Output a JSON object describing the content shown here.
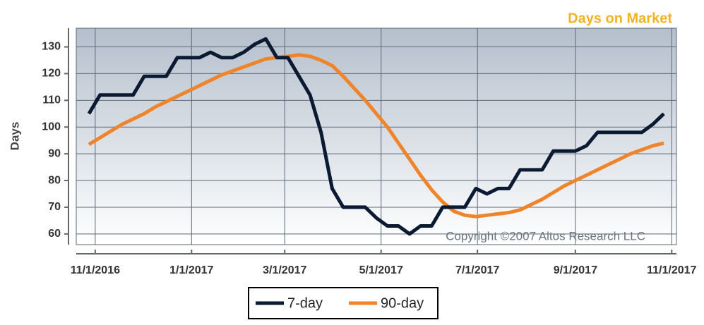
{
  "chart_data": {
    "type": "line",
    "title": "Days on Market",
    "y_label": "Days",
    "annotation": "Copyright ©2007 Altos Research LLC",
    "x": [
      "10/28/2016",
      "11/4/2016",
      "11/11/2016",
      "11/18/2016",
      "11/25/2016",
      "12/2/2016",
      "12/9/2016",
      "12/16/2016",
      "12/23/2016",
      "12/30/2016",
      "1/6/2017",
      "1/13/2017",
      "1/20/2017",
      "1/27/2017",
      "2/3/2017",
      "2/10/2017",
      "2/17/2017",
      "2/24/2017",
      "3/3/2017",
      "3/10/2017",
      "3/17/2017",
      "3/24/2017",
      "3/31/2017",
      "4/7/2017",
      "4/14/2017",
      "4/21/2017",
      "4/28/2017",
      "5/5/2017",
      "5/12/2017",
      "5/19/2017",
      "5/26/2017",
      "6/2/2017",
      "6/9/2017",
      "6/16/2017",
      "6/23/2017",
      "6/30/2017",
      "7/7/2017",
      "7/14/2017",
      "7/21/2017",
      "7/28/2017",
      "8/4/2017",
      "8/11/2017",
      "8/18/2017",
      "8/25/2017",
      "9/1/2017",
      "9/8/2017",
      "9/15/2017",
      "9/22/2017",
      "9/29/2017",
      "10/6/2017",
      "10/13/2017",
      "10/20/2017",
      "10/27/2017"
    ],
    "series": [
      {
        "name": "7-day",
        "color": "#0b1a33",
        "values": [
          105,
          112,
          112,
          112,
          112,
          119,
          119,
          119,
          126,
          126,
          126,
          128,
          126,
          126,
          128,
          131,
          133,
          126,
          126,
          119,
          112,
          98,
          77,
          70,
          70,
          70,
          66,
          63,
          63,
          60,
          63,
          63,
          70,
          70,
          70,
          77,
          75,
          77,
          77,
          84,
          84,
          84,
          91,
          91,
          91,
          93,
          98,
          98,
          98,
          98,
          98,
          101,
          105
        ]
      },
      {
        "name": "90-day",
        "color": "#f0842a",
        "values": [
          93.5,
          96,
          98.5,
          101,
          103,
          105,
          107.5,
          109.5,
          111.5,
          113.5,
          115.5,
          117.5,
          119.5,
          121,
          122.5,
          124,
          125.5,
          126,
          126.5,
          127,
          126.5,
          125,
          123,
          119,
          114.5,
          110,
          105,
          100,
          94,
          88,
          82,
          76.5,
          72,
          68.5,
          67,
          66.5,
          67,
          67.5,
          68,
          69,
          71,
          73,
          75.5,
          78,
          80,
          82,
          84,
          86,
          88,
          90,
          91.5,
          93,
          94
        ]
      }
    ],
    "xlim": [
      "10/20/2016",
      "11/4/2017"
    ],
    "xticks": [
      "11/1/2016",
      "1/1/2017",
      "3/1/2017",
      "5/1/2017",
      "7/1/2017",
      "9/1/2017",
      "11/1/2017"
    ],
    "ylim": [
      56,
      137
    ],
    "yticks": [
      60,
      70,
      80,
      90,
      100,
      110,
      120,
      130
    ],
    "grid": true,
    "legend": "bottom"
  }
}
